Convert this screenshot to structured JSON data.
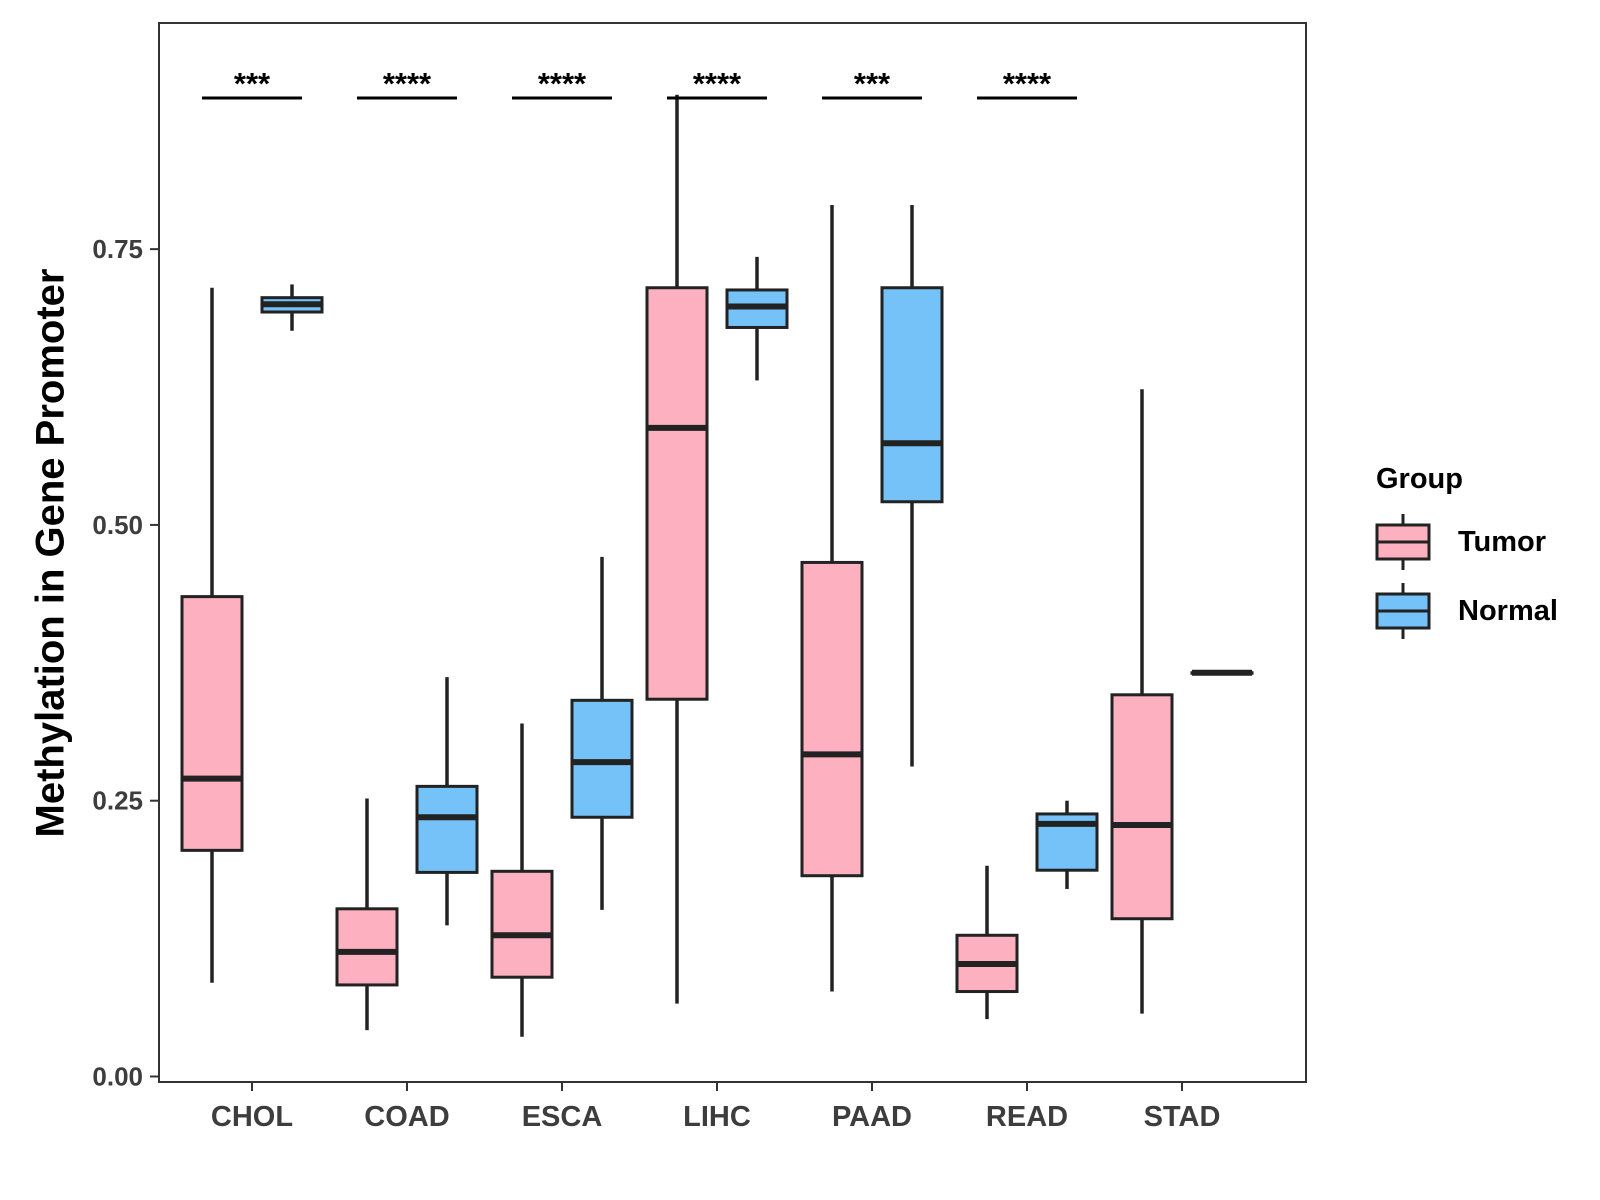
{
  "chart_data": {
    "type": "boxplot",
    "title": "",
    "xlabel": "",
    "ylabel": "Methylation in Gene Promoter",
    "ylim": [
      -0.005,
      0.955
    ],
    "yticks": [
      0.0,
      0.25,
      0.5,
      0.75
    ],
    "ytick_labels": [
      "0.00",
      "0.25",
      "0.50",
      "0.75"
    ],
    "categories": [
      "CHOL",
      "COAD",
      "ESCA",
      "LIHC",
      "PAAD",
      "READ",
      "STAD"
    ],
    "legend": {
      "title": "Group",
      "position": "right",
      "entries": [
        {
          "label": "Tumor",
          "color": "#fdb0c0"
        },
        {
          "label": "Normal",
          "color": "#74c2f8"
        }
      ]
    },
    "series": [
      {
        "name": "Tumor",
        "color": "#fdb0c0",
        "boxes": [
          {
            "category": "CHOL",
            "min": 0.085,
            "q1": 0.205,
            "median": 0.27,
            "q3": 0.435,
            "max": 0.715
          },
          {
            "category": "COAD",
            "min": 0.042,
            "q1": 0.083,
            "median": 0.113,
            "q3": 0.152,
            "max": 0.252
          },
          {
            "category": "ESCA",
            "min": 0.036,
            "q1": 0.09,
            "median": 0.128,
            "q3": 0.186,
            "max": 0.32
          },
          {
            "category": "LIHC",
            "min": 0.066,
            "q1": 0.342,
            "median": 0.588,
            "q3": 0.715,
            "max": 0.89
          },
          {
            "category": "PAAD",
            "min": 0.077,
            "q1": 0.182,
            "median": 0.292,
            "q3": 0.466,
            "max": 0.79
          },
          {
            "category": "READ",
            "min": 0.052,
            "q1": 0.077,
            "median": 0.102,
            "q3": 0.128,
            "max": 0.191
          },
          {
            "category": "STAD",
            "min": 0.057,
            "q1": 0.143,
            "median": 0.228,
            "q3": 0.346,
            "max": 0.623
          }
        ]
      },
      {
        "name": "Normal",
        "color": "#74c2f8",
        "boxes": [
          {
            "category": "CHOL",
            "min": 0.676,
            "q1": 0.693,
            "median": 0.7,
            "q3": 0.706,
            "max": 0.718
          },
          {
            "category": "COAD",
            "min": 0.137,
            "q1": 0.185,
            "median": 0.235,
            "q3": 0.263,
            "max": 0.362
          },
          {
            "category": "ESCA",
            "min": 0.151,
            "q1": 0.235,
            "median": 0.285,
            "q3": 0.341,
            "max": 0.471
          },
          {
            "category": "LIHC",
            "min": 0.631,
            "q1": 0.679,
            "median": 0.698,
            "q3": 0.713,
            "max": 0.743
          },
          {
            "category": "PAAD",
            "min": 0.281,
            "q1": 0.521,
            "median": 0.574,
            "q3": 0.715,
            "max": 0.79
          },
          {
            "category": "READ",
            "min": 0.17,
            "q1": 0.187,
            "median": 0.229,
            "q3": 0.238,
            "max": 0.25
          },
          {
            "category": "STAD",
            "min": 0.366,
            "q1": 0.366,
            "median": 0.366,
            "q3": 0.366,
            "max": 0.366
          }
        ]
      }
    ],
    "annotations": [
      {
        "category": "CHOL",
        "label": "***",
        "y": 0.887
      },
      {
        "category": "COAD",
        "label": "****",
        "y": 0.887
      },
      {
        "category": "ESCA",
        "label": "****",
        "y": 0.887
      },
      {
        "category": "LIHC",
        "label": "****",
        "y": 0.887
      },
      {
        "category": "PAAD",
        "label": "***",
        "y": 0.887
      },
      {
        "category": "READ",
        "label": "****",
        "y": 0.887
      }
    ]
  }
}
